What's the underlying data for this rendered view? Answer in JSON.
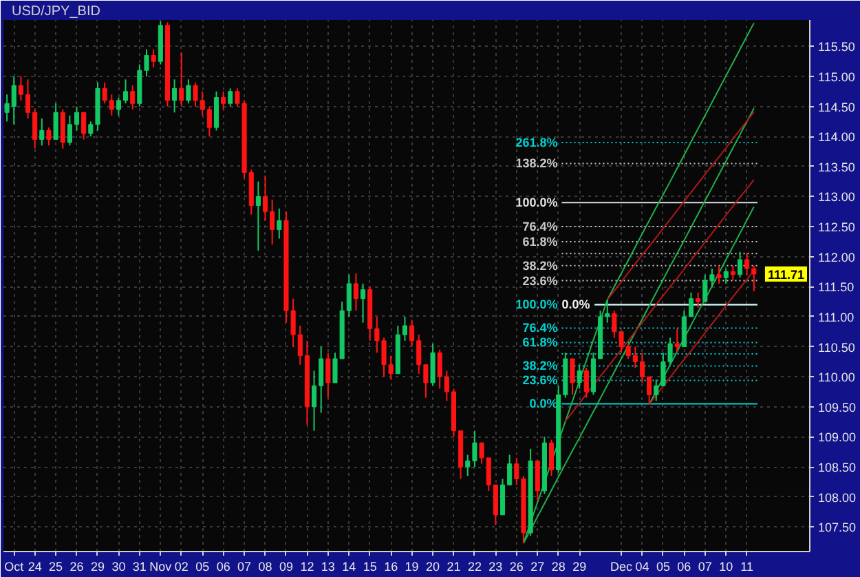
{
  "chart_data": {
    "type": "candlestick",
    "title": "USD/JPY_BID",
    "categories": [
      null,
      "Oct",
      null,
      null,
      "24",
      null,
      null,
      "25",
      null,
      null,
      "26",
      null,
      null,
      "29",
      null,
      null,
      "30",
      null,
      null,
      "31",
      null,
      null,
      "Nov",
      null,
      null,
      "02",
      null,
      null,
      "05",
      null,
      null,
      "06",
      null,
      null,
      "07",
      null,
      null,
      "08",
      null,
      null,
      "09",
      null,
      null,
      "12",
      null,
      null,
      "13",
      null,
      null,
      "14",
      null,
      null,
      "15",
      null,
      null,
      "16",
      null,
      null,
      "19",
      null,
      null,
      "20",
      null,
      null,
      "21",
      null,
      null,
      "22",
      null,
      null,
      "23",
      null,
      null,
      "26",
      null,
      null,
      "27",
      null,
      null,
      "28",
      null,
      null,
      "29",
      null,
      null,
      null,
      null,
      null,
      "Dec",
      null,
      null,
      "04",
      null,
      null,
      "05",
      null,
      null,
      "06",
      null,
      null,
      "07",
      null,
      null,
      "10",
      null,
      null,
      "11",
      null
    ],
    "ohlc": [
      [
        114.4,
        114.7,
        114.25,
        114.55
      ],
      [
        114.5,
        115.0,
        114.2,
        114.85
      ],
      [
        114.85,
        115.0,
        114.6,
        114.7
      ],
      [
        114.7,
        114.95,
        114.3,
        114.4
      ],
      [
        114.4,
        114.45,
        113.8,
        113.95
      ],
      [
        113.95,
        114.3,
        113.85,
        114.1
      ],
      [
        114.1,
        114.15,
        113.85,
        113.95
      ],
      [
        113.95,
        114.55,
        113.95,
        114.4
      ],
      [
        114.4,
        114.45,
        113.8,
        113.9
      ],
      [
        113.9,
        114.35,
        113.85,
        114.2
      ],
      [
        114.2,
        114.5,
        114.1,
        114.4
      ],
      [
        114.4,
        114.4,
        113.95,
        114.05
      ],
      [
        114.05,
        114.25,
        114.0,
        114.2
      ],
      [
        114.2,
        114.9,
        114.1,
        114.8
      ],
      [
        114.8,
        114.9,
        114.55,
        114.6
      ],
      [
        114.6,
        114.7,
        114.35,
        114.45
      ],
      [
        114.45,
        114.65,
        114.35,
        114.6
      ],
      [
        114.6,
        114.95,
        114.55,
        114.75
      ],
      [
        114.75,
        114.85,
        114.45,
        114.55
      ],
      [
        114.55,
        115.2,
        114.5,
        115.1
      ],
      [
        115.1,
        115.45,
        115.0,
        115.35
      ],
      [
        115.35,
        115.45,
        115.15,
        115.25
      ],
      [
        115.25,
        115.92,
        115.2,
        115.85
      ],
      [
        115.85,
        115.9,
        114.5,
        114.6
      ],
      [
        114.6,
        114.95,
        114.4,
        114.8
      ],
      [
        114.8,
        115.4,
        114.5,
        114.6
      ],
      [
        114.6,
        114.95,
        114.55,
        114.85
      ],
      [
        114.85,
        114.9,
        114.5,
        114.6
      ],
      [
        114.6,
        114.75,
        114.35,
        114.45
      ],
      [
        114.45,
        114.5,
        114.0,
        114.15
      ],
      [
        114.15,
        114.75,
        114.1,
        114.65
      ],
      [
        114.65,
        114.75,
        114.45,
        114.55
      ],
      [
        114.55,
        114.8,
        114.5,
        114.75
      ],
      [
        114.75,
        114.8,
        114.5,
        114.55
      ],
      [
        114.55,
        114.6,
        113.3,
        113.4
      ],
      [
        113.4,
        113.45,
        112.7,
        112.85
      ],
      [
        112.85,
        113.25,
        112.1,
        113.0
      ],
      [
        113.0,
        113.35,
        112.6,
        112.75
      ],
      [
        112.75,
        112.95,
        112.2,
        112.45
      ],
      [
        112.45,
        112.8,
        112.3,
        112.6
      ],
      [
        112.6,
        112.75,
        110.9,
        111.1
      ],
      [
        111.1,
        111.3,
        110.5,
        110.7
      ],
      [
        110.7,
        110.85,
        110.2,
        110.35
      ],
      [
        110.35,
        110.6,
        109.2,
        109.5
      ],
      [
        109.5,
        110.1,
        109.1,
        109.85
      ],
      [
        109.85,
        110.5,
        109.4,
        110.3
      ],
      [
        110.3,
        110.4,
        109.65,
        109.9
      ],
      [
        109.9,
        110.4,
        109.9,
        110.3
      ],
      [
        110.3,
        111.25,
        110.3,
        111.1
      ],
      [
        111.1,
        111.7,
        111.0,
        111.55
      ],
      [
        111.55,
        111.72,
        111.1,
        111.3
      ],
      [
        111.3,
        111.55,
        110.9,
        111.45
      ],
      [
        111.45,
        111.5,
        110.6,
        110.8
      ],
      [
        110.8,
        111.0,
        110.4,
        110.6
      ],
      [
        110.6,
        110.65,
        110.0,
        110.2
      ],
      [
        110.2,
        110.35,
        109.95,
        110.05
      ],
      [
        110.05,
        110.85,
        110.05,
        110.7
      ],
      [
        110.7,
        111.0,
        110.6,
        110.85
      ],
      [
        110.85,
        110.95,
        110.5,
        110.6
      ],
      [
        110.6,
        110.7,
        110.05,
        110.2
      ],
      [
        110.2,
        110.2,
        109.65,
        109.9
      ],
      [
        109.9,
        110.55,
        109.85,
        110.4
      ],
      [
        110.4,
        110.45,
        109.8,
        110.0
      ],
      [
        110.0,
        110.1,
        109.6,
        109.75
      ],
      [
        109.75,
        109.8,
        109.0,
        109.1
      ],
      [
        109.1,
        109.1,
        108.3,
        108.5
      ],
      [
        108.5,
        108.7,
        108.35,
        108.6
      ],
      [
        108.6,
        109.1,
        108.5,
        108.9
      ],
      [
        108.9,
        108.9,
        108.55,
        108.65
      ],
      [
        108.65,
        108.65,
        108.1,
        108.2
      ],
      [
        108.2,
        108.2,
        107.53,
        107.7
      ],
      [
        107.7,
        108.3,
        107.7,
        108.2
      ],
      [
        108.2,
        108.7,
        108.2,
        108.55
      ],
      [
        108.55,
        108.65,
        108.2,
        108.3
      ],
      [
        108.3,
        108.35,
        107.23,
        107.4
      ],
      [
        107.4,
        108.8,
        107.35,
        108.6
      ],
      [
        108.6,
        108.6,
        107.95,
        108.1
      ],
      [
        108.1,
        109.0,
        108.05,
        108.9
      ],
      [
        108.9,
        108.95,
        108.35,
        108.45
      ],
      [
        108.45,
        109.85,
        108.4,
        109.7
      ],
      [
        109.7,
        110.4,
        109.65,
        110.3
      ],
      [
        110.3,
        110.3,
        109.7,
        109.9
      ],
      [
        109.9,
        110.2,
        109.8,
        110.1
      ],
      [
        110.1,
        110.15,
        109.65,
        109.75
      ],
      [
        109.75,
        110.4,
        109.7,
        110.3
      ],
      [
        110.3,
        111.1,
        110.3,
        111.0
      ],
      [
        111.0,
        111.28,
        110.9,
        111.05
      ],
      [
        111.05,
        111.1,
        110.65,
        110.75
      ],
      [
        110.75,
        110.75,
        110.4,
        110.5
      ],
      [
        110.5,
        110.55,
        110.3,
        110.35
      ],
      [
        110.35,
        110.5,
        110.15,
        110.25
      ],
      [
        110.25,
        110.4,
        109.9,
        110.0
      ],
      [
        110.0,
        110.0,
        109.54,
        109.7
      ],
      [
        109.7,
        109.95,
        109.6,
        109.85
      ],
      [
        109.85,
        110.4,
        109.85,
        110.25
      ],
      [
        110.25,
        110.65,
        110.2,
        110.55
      ],
      [
        110.55,
        110.8,
        110.4,
        110.5
      ],
      [
        110.5,
        111.1,
        110.5,
        111.0
      ],
      [
        111.0,
        111.4,
        111.0,
        111.3
      ],
      [
        111.3,
        111.4,
        111.15,
        111.25
      ],
      [
        111.25,
        111.7,
        111.25,
        111.6
      ],
      [
        111.6,
        111.8,
        111.5,
        111.7
      ],
      [
        111.7,
        111.85,
        111.55,
        111.65
      ],
      [
        111.65,
        111.8,
        111.55,
        111.75
      ],
      [
        111.75,
        111.85,
        111.6,
        111.7
      ],
      [
        111.7,
        112.08,
        111.65,
        111.95
      ],
      [
        111.95,
        112.05,
        111.7,
        111.8
      ],
      [
        111.8,
        111.85,
        111.42,
        111.71
      ]
    ],
    "colors": [
      "#14c864",
      "#14c864",
      "#ff1414",
      "#ff1414",
      "#ff1414",
      "#14c864",
      "#ff1414",
      "#14c864",
      "#ff1414",
      "#14c864",
      "#14c864",
      "#ff1414",
      "#14c864",
      "#14c864",
      "#ff1414",
      "#ff1414",
      "#14c864",
      "#14c864",
      "#ff1414",
      "#14c864",
      "#14c864",
      "#ff1414",
      "#14c864",
      "#ff1414",
      "#14c864",
      "#ff1414",
      "#14c864",
      "#ff1414",
      "#ff1414",
      "#ff1414",
      "#14c864",
      "#ff1414",
      "#14c864",
      "#ff1414",
      "#ff1414",
      "#ff1414",
      "#14c864",
      "#ff1414",
      "#ff1414",
      "#14c864",
      "#ff1414",
      "#ff1414",
      "#ff1414",
      "#ff1414",
      "#14c864",
      "#14c864",
      "#ff1414",
      "#14c864",
      "#14c864",
      "#14c864",
      "#ff1414",
      "#14c864",
      "#ff1414",
      "#ff1414",
      "#ff1414",
      "#ff1414",
      "#14c864",
      "#14c864",
      "#ff1414",
      "#ff1414",
      "#ff1414",
      "#14c864",
      "#ff1414",
      "#ff1414",
      "#ff1414",
      "#ff1414",
      "#14c864",
      "#14c864",
      "#ff1414",
      "#ff1414",
      "#ff1414",
      "#14c864",
      "#14c864",
      "#ff1414",
      "#ff1414",
      "#14c864",
      "#ff1414",
      "#14c864",
      "#ff1414",
      "#14c864",
      "#14c864",
      "#ff1414",
      "#14c864",
      "#ff1414",
      "#14c864",
      "#14c864",
      "#14c864",
      "#ff1414",
      "#ff1414",
      "#ff1414",
      "#ff1414",
      "#ff1414",
      "#ff1414",
      "#14c864",
      "#14c864",
      "#14c864",
      "#ff1414",
      "#14c864",
      "#14c864",
      "#ff1414",
      "#14c864",
      "#14c864",
      "#ff1414",
      "#14c864",
      "#ff1414",
      "#14c864",
      "#ff1414",
      "#ff1414"
    ],
    "series": [
      {
        "type": "line",
        "color": "#22b04a",
        "values": [
          null,
          null,
          null,
          null,
          null,
          null,
          null,
          null,
          null,
          null,
          null,
          null,
          null,
          null,
          null,
          null,
          null,
          null,
          null,
          null,
          null,
          null,
          null,
          null,
          null,
          null,
          null,
          null,
          null,
          null,
          null,
          null,
          null,
          null,
          null,
          null,
          null,
          null,
          null,
          null,
          null,
          null,
          null,
          null,
          null,
          null,
          null,
          null,
          null,
          null,
          null,
          null,
          null,
          null,
          null,
          null,
          null,
          null,
          null,
          null,
          null,
          null,
          null,
          null,
          null,
          null,
          null,
          null,
          null,
          null,
          null,
          null,
          null,
          null,
          107.23,
          107.57,
          107.91,
          108.24,
          108.58,
          108.92,
          109.26,
          109.59,
          109.93,
          110.27,
          110.61,
          110.94,
          111.28,
          111.5,
          111.72,
          111.94,
          112.16,
          112.38,
          112.6,
          112.82,
          113.03,
          113.25,
          113.47,
          113.69,
          113.91,
          114.13,
          114.35,
          114.57,
          114.79,
          115.01,
          115.23,
          115.45,
          115.67,
          115.89
        ]
      },
      {
        "type": "line",
        "color": "#22b04a",
        "values": [
          null,
          null,
          null,
          null,
          null,
          null,
          null,
          null,
          null,
          null,
          null,
          null,
          null,
          null,
          null,
          null,
          null,
          null,
          null,
          null,
          null,
          null,
          null,
          null,
          null,
          null,
          null,
          null,
          null,
          null,
          null,
          null,
          null,
          null,
          null,
          null,
          null,
          null,
          null,
          null,
          null,
          null,
          null,
          null,
          null,
          null,
          null,
          null,
          null,
          null,
          null,
          null,
          null,
          null,
          null,
          null,
          null,
          null,
          null,
          null,
          null,
          null,
          null,
          null,
          null,
          null,
          null,
          null,
          null,
          null,
          null,
          null,
          null,
          null,
          107.23,
          107.45,
          107.67,
          107.89,
          108.11,
          108.33,
          108.55,
          108.77,
          108.98,
          109.2,
          109.42,
          109.64,
          109.86,
          110.08,
          110.3,
          110.52,
          110.74,
          110.96,
          111.18,
          111.4,
          111.62,
          111.84,
          112.05,
          112.27,
          112.49,
          112.71,
          112.93,
          113.15,
          113.37,
          113.59,
          113.81,
          114.03,
          114.25,
          114.47
        ]
      },
      {
        "type": "line",
        "color": "#22b04a",
        "values": [
          null,
          null,
          null,
          null,
          null,
          null,
          null,
          null,
          null,
          null,
          null,
          null,
          null,
          null,
          null,
          null,
          null,
          null,
          null,
          null,
          null,
          null,
          null,
          null,
          null,
          null,
          null,
          null,
          null,
          null,
          null,
          null,
          null,
          null,
          null,
          null,
          null,
          null,
          null,
          null,
          null,
          null,
          null,
          null,
          null,
          null,
          null,
          null,
          null,
          null,
          null,
          null,
          null,
          null,
          null,
          null,
          null,
          null,
          null,
          null,
          null,
          null,
          null,
          null,
          null,
          null,
          null,
          null,
          null,
          null,
          null,
          null,
          null,
          null,
          null,
          null,
          null,
          null,
          null,
          null,
          null,
          null,
          null,
          null,
          null,
          null,
          null,
          null,
          null,
          null,
          null,
          null,
          109.54,
          109.76,
          109.98,
          110.2,
          110.42,
          110.64,
          110.86,
          111.08,
          111.29,
          111.51,
          111.73,
          111.95,
          112.17,
          112.39,
          112.61,
          112.83
        ]
      },
      {
        "type": "line",
        "color": "#b01818",
        "values": [
          null,
          null,
          null,
          null,
          null,
          null,
          null,
          null,
          null,
          null,
          null,
          null,
          null,
          null,
          null,
          null,
          null,
          null,
          null,
          null,
          null,
          null,
          null,
          null,
          null,
          null,
          null,
          null,
          null,
          null,
          null,
          null,
          null,
          null,
          null,
          null,
          null,
          null,
          null,
          null,
          null,
          null,
          null,
          null,
          null,
          null,
          null,
          null,
          null,
          null,
          null,
          null,
          null,
          null,
          null,
          null,
          null,
          null,
          null,
          null,
          null,
          null,
          null,
          null,
          null,
          null,
          null,
          null,
          null,
          null,
          null,
          null,
          null,
          null,
          null,
          null,
          null,
          null,
          null,
          null,
          109.26,
          109.41,
          109.56,
          109.71,
          109.86,
          110.01,
          110.15,
          110.3,
          110.45,
          110.6,
          110.75,
          110.9,
          111.05,
          111.2,
          111.35,
          111.5,
          111.64,
          111.79,
          111.94,
          112.09,
          112.24,
          112.39,
          112.54,
          112.69,
          112.84,
          112.99,
          113.13,
          113.28
        ]
      },
      {
        "type": "line",
        "color": "#b01818",
        "values": [
          null,
          null,
          null,
          null,
          null,
          null,
          null,
          null,
          null,
          null,
          null,
          null,
          null,
          null,
          null,
          null,
          null,
          null,
          null,
          null,
          null,
          null,
          null,
          null,
          null,
          null,
          null,
          null,
          null,
          null,
          null,
          null,
          null,
          null,
          null,
          null,
          null,
          null,
          null,
          null,
          null,
          null,
          null,
          null,
          null,
          null,
          null,
          null,
          null,
          null,
          null,
          null,
          null,
          null,
          null,
          null,
          null,
          null,
          null,
          null,
          null,
          null,
          null,
          null,
          null,
          null,
          null,
          null,
          null,
          null,
          null,
          null,
          null,
          null,
          null,
          null,
          null,
          null,
          null,
          null,
          null,
          null,
          null,
          null,
          null,
          null,
          111.28,
          111.43,
          111.58,
          111.73,
          111.88,
          112.03,
          112.17,
          112.32,
          112.47,
          112.62,
          112.77,
          112.92,
          113.07,
          113.22,
          113.37,
          113.52,
          113.66,
          113.81,
          113.96,
          114.11,
          114.26,
          114.41
        ]
      },
      {
        "type": "line",
        "color": "#b01818",
        "values": [
          null,
          null,
          null,
          null,
          null,
          null,
          null,
          null,
          null,
          null,
          null,
          null,
          null,
          null,
          null,
          null,
          null,
          null,
          null,
          null,
          null,
          null,
          null,
          null,
          null,
          null,
          null,
          null,
          null,
          null,
          null,
          null,
          null,
          null,
          null,
          null,
          null,
          null,
          null,
          null,
          null,
          null,
          null,
          null,
          null,
          null,
          null,
          null,
          null,
          null,
          null,
          null,
          null,
          null,
          null,
          null,
          null,
          null,
          null,
          null,
          null,
          null,
          null,
          null,
          null,
          null,
          null,
          null,
          null,
          null,
          null,
          null,
          null,
          null,
          null,
          null,
          null,
          null,
          null,
          null,
          null,
          null,
          null,
          null,
          null,
          null,
          null,
          null,
          null,
          null,
          null,
          null,
          109.54,
          109.69,
          109.84,
          109.99,
          110.14,
          110.29,
          110.43,
          110.58,
          110.73,
          110.88,
          111.03,
          111.18,
          111.33,
          111.48,
          111.62,
          111.77
        ]
      }
    ],
    "ref_lines": [
      {
        "axis": "y",
        "value": 113.9,
        "color": "#00d0d0",
        "line_style": "dotted"
      },
      {
        "axis": "y",
        "value": 113.55,
        "color": "#c8c8c8",
        "line_style": "dotted"
      },
      {
        "axis": "y",
        "value": 112.9,
        "color": "#e0e0e0",
        "line_style": "solid"
      },
      {
        "axis": "y",
        "value": 112.5,
        "color": "#c8c8c8",
        "line_style": "dotted"
      },
      {
        "axis": "y",
        "value": 112.25,
        "color": "#c8c8c8",
        "line_style": "dotted"
      },
      {
        "axis": "y",
        "value": 111.85,
        "color": "#c8c8c8",
        "line_style": "dotted"
      },
      {
        "axis": "y",
        "value": 111.6,
        "color": "#c8c8c8",
        "line_style": "dotted"
      },
      {
        "axis": "y",
        "value": 111.2,
        "color": "#00d0d0",
        "line_style": "solid"
      },
      {
        "axis": "y",
        "value": 111.2,
        "color": "#f0f0f0",
        "line_style": "solid"
      },
      {
        "axis": "y",
        "value": 110.81,
        "color": "#00d0d0",
        "line_style": "dotted"
      },
      {
        "axis": "y",
        "value": 110.57,
        "color": "#00d0d0",
        "line_style": "dotted"
      },
      {
        "axis": "y",
        "value": 110.18,
        "color": "#00d0d0",
        "line_style": "dotted"
      },
      {
        "axis": "y",
        "value": 109.94,
        "color": "#00d0d0",
        "line_style": "dotted"
      },
      {
        "axis": "y",
        "value": 109.55,
        "color": "#00d0d0",
        "line_style": "solid"
      },
      {
        "axis": "y",
        "value": 112.05,
        "color": "#c8c8c8",
        "line_style": "dotted"
      },
      {
        "axis": "y",
        "value": 110.38,
        "color": "#00d0d0",
        "line_style": "dotted"
      }
    ],
    "annotations": [
      "111.71",
      "261.8%",
      "138.2%",
      "100.0%",
      "76.4%",
      "61.8%",
      "38.2%",
      "23.6%",
      "100.0%",
      "0.0%",
      "76.4%",
      "61.8%",
      "38.2%",
      "23.6%",
      "0.0%"
    ],
    "ylim": [
      107.09,
      115.94
    ],
    "yticks": [
      {
        "value": 107.5,
        "label": "107.50"
      },
      {
        "value": 108,
        "label": "108.00"
      },
      {
        "value": 108.5,
        "label": "108.50"
      },
      {
        "value": 109,
        "label": "109.00"
      },
      {
        "value": 109.5,
        "label": "109.50"
      },
      {
        "value": 110,
        "label": "110.00"
      },
      {
        "value": 110.5,
        "label": "110.50"
      },
      {
        "value": 111,
        "label": "111.00"
      },
      {
        "value": 111.5,
        "label": "111.50"
      },
      {
        "value": 112,
        "label": "112.00"
      },
      {
        "value": 112.5,
        "label": "112.50"
      },
      {
        "value": 113,
        "label": "113.00"
      },
      {
        "value": 113.5,
        "label": "113.50"
      },
      {
        "value": 114,
        "label": "114.00"
      },
      {
        "value": 114.5,
        "label": "114.50"
      },
      {
        "value": 115,
        "label": "115.00"
      },
      {
        "value": 115.5,
        "label": "115.50"
      }
    ],
    "grid": true
  }
}
